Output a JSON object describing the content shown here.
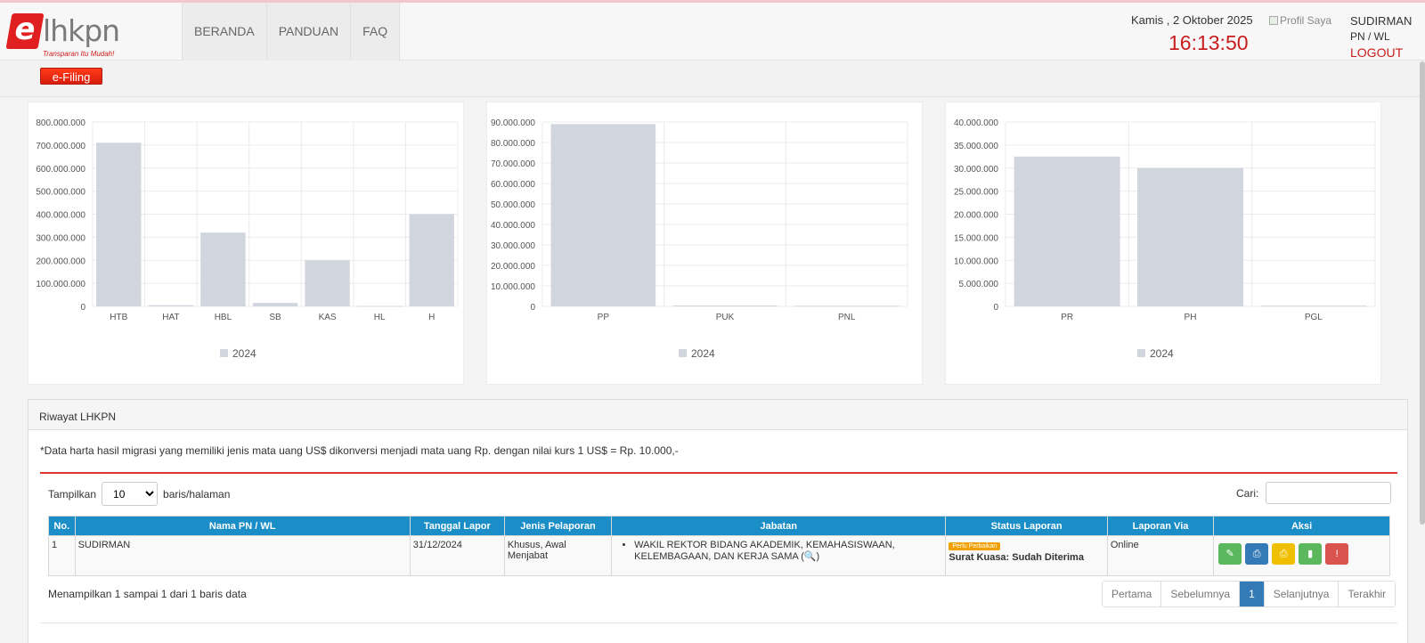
{
  "header": {
    "logo_text": "lhkpn",
    "logo_letter": "e",
    "logo_tagline": "Transparan Itu Mudah!",
    "nav": [
      "BERANDA",
      "PANDUAN",
      "FAQ"
    ],
    "date": "Kamis , 2 Oktober 2025",
    "time": "16:13:50",
    "profile_alt": "Profil Saya",
    "user_name": "SUDIRMAN",
    "user_role": "PN / WL",
    "logout_label": "LOGOUT"
  },
  "subbar": {
    "efiling_label": "e-Filing"
  },
  "colors": {
    "bar": "#d1d5de",
    "accent": "#c91d1d",
    "table_head": "#1b8ec8"
  },
  "chart_data": [
    {
      "type": "bar",
      "categories": [
        "HTB",
        "HAT",
        "HBL",
        "SB",
        "KAS",
        "HL",
        "H"
      ],
      "series": [
        {
          "name": "2024",
          "values": [
            710000000,
            5000000,
            320000000,
            15000000,
            200000000,
            2000000,
            400000000
          ]
        }
      ],
      "ylim": [
        0,
        800000000
      ],
      "yticks": [
        "800.000.000",
        "700.000.000",
        "600.000.000",
        "500.000.000",
        "400.000.000",
        "300.000.000",
        "200.000.000",
        "100.000.000",
        "0"
      ],
      "legend": "bottom-center",
      "grid": true
    },
    {
      "type": "bar",
      "categories": [
        "PP",
        "PUK",
        "PNL"
      ],
      "series": [
        {
          "name": "2024",
          "values": [
            89000000,
            400000,
            300000
          ]
        }
      ],
      "ylim": [
        0,
        90000000
      ],
      "yticks": [
        "90.000.000",
        "80.000.000",
        "70.000.000",
        "60.000.000",
        "50.000.000",
        "40.000.000",
        "30.000.000",
        "20.000.000",
        "10.000.000",
        "0"
      ],
      "legend": "bottom-center",
      "grid": true
    },
    {
      "type": "bar",
      "categories": [
        "PR",
        "PH",
        "PGL"
      ],
      "series": [
        {
          "name": "2024",
          "values": [
            32500000,
            30000000,
            150000
          ]
        }
      ],
      "ylim": [
        0,
        40000000
      ],
      "yticks": [
        "40.000.000",
        "35.000.000",
        "30.000.000",
        "25.000.000",
        "20.000.000",
        "15.000.000",
        "10.000.000",
        "5.000.000",
        "0"
      ],
      "legend": "bottom-center",
      "grid": true
    }
  ],
  "riwayat": {
    "title": "Riwayat LHKPN",
    "note": "*Data harta hasil migrasi yang memiliki jenis mata uang US$ dikonversi menjadi mata uang Rp. dengan nilai kurs 1 US$ = Rp. 10.000,-",
    "show_label": "Tampilkan",
    "show_value": "10",
    "show_suffix": "baris/halaman",
    "search_label": "Cari:",
    "columns": [
      "No.",
      "Nama PN / WL",
      "Tanggal Lapor",
      "Jenis Pelaporan",
      "Jabatan",
      "Status Laporan",
      "Laporan Via",
      "Aksi"
    ],
    "rows": [
      {
        "no": "1",
        "nama": "SUDIRMAN",
        "tanggal": "31/12/2024",
        "jenis": "Khusus, Awal Menjabat",
        "jabatan": "WAKIL REKTOR BIDANG AKADEMIK, KEMAHASISWAAN, KELEMBAGAAN, DAN KERJA SAMA (🔍)",
        "status_badge": "Perlu Perbaikan",
        "status_text": "Surat Kuasa: Sudah Diterima",
        "via": "Online"
      }
    ],
    "actions": [
      {
        "name": "edit-icon",
        "color": "#5cb85c",
        "glyph": "✎"
      },
      {
        "name": "print-icon",
        "color": "#337ab7",
        "glyph": "⎙"
      },
      {
        "name": "print-alt-icon",
        "color": "#f0c000",
        "glyph": "⎙"
      },
      {
        "name": "document-icon",
        "color": "#5cb85c",
        "glyph": "▮"
      },
      {
        "name": "alert-icon",
        "color": "#d9534f",
        "glyph": "!"
      }
    ],
    "info": "Menampilkan 1 sampai 1 dari 1 baris data",
    "pager": [
      "Pertama",
      "Sebelumnya",
      "1",
      "Selanjutnya",
      "Terakhir"
    ]
  }
}
